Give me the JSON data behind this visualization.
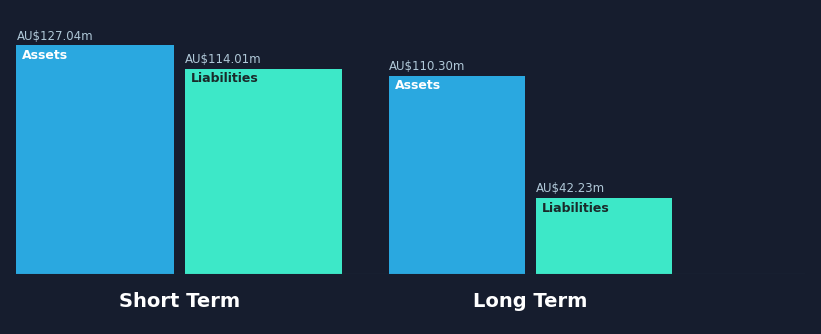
{
  "background_color": "#161d2e",
  "short_term": {
    "assets_value": 127.04,
    "liabilities_value": 114.01,
    "assets_label": "Assets",
    "liabilities_label": "Liabilities",
    "assets_color": "#2aa8e0",
    "liabilities_color": "#3de8c8",
    "label": "Short Term"
  },
  "long_term": {
    "assets_value": 110.3,
    "liabilities_value": 42.23,
    "assets_label": "Assets",
    "liabilities_label": "Liabilities",
    "assets_color": "#2aa8e0",
    "liabilities_color": "#3de8c8",
    "label": "Long Term"
  },
  "text_color": "#ffffff",
  "value_text_color": "#b0c8d8",
  "inner_label_color": "#ffffff",
  "liabilities_inner_label_color": "#1a2a2a",
  "max_value": 130.0,
  "title_fontsize": 14,
  "label_fontsize": 9,
  "value_fontsize": 8.5
}
